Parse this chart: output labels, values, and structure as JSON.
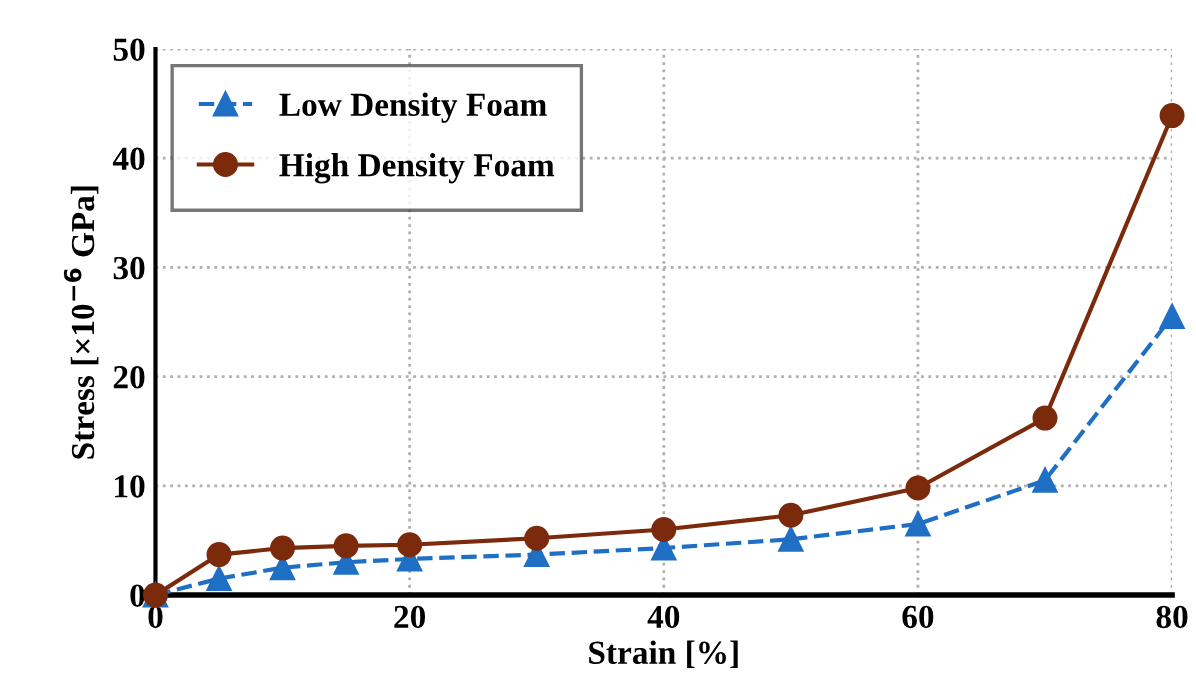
{
  "chart_data": {
    "type": "line",
    "xlabel": "Strain [%]",
    "ylabel": "Stress [×10$^{−6}$ GPa]",
    "x": [
      0,
      5,
      10,
      15,
      20,
      30,
      40,
      50,
      60,
      70,
      80
    ],
    "series": [
      {
        "name": "Low Density Foam",
        "color": "#1f6fc4",
        "marker": "triangle",
        "line_style": "dashed",
        "values": [
          0,
          1.5,
          2.5,
          3.0,
          3.3,
          3.7,
          4.3,
          5.1,
          6.5,
          10.5,
          25.5
        ]
      },
      {
        "name": "High Density Foam",
        "color": "#7b2a0c",
        "marker": "circle",
        "line_style": "solid",
        "values": [
          0,
          3.7,
          4.3,
          4.5,
          4.6,
          5.2,
          6.0,
          7.3,
          9.8,
          16.2,
          43.9
        ]
      }
    ],
    "xlim": [
      0,
      80
    ],
    "ylim": [
      0,
      50
    ],
    "xticks": [
      0,
      20,
      40,
      60,
      80
    ],
    "yticks": [
      0,
      10,
      20,
      30,
      40,
      50
    ],
    "grid": true,
    "legend": "top left"
  }
}
